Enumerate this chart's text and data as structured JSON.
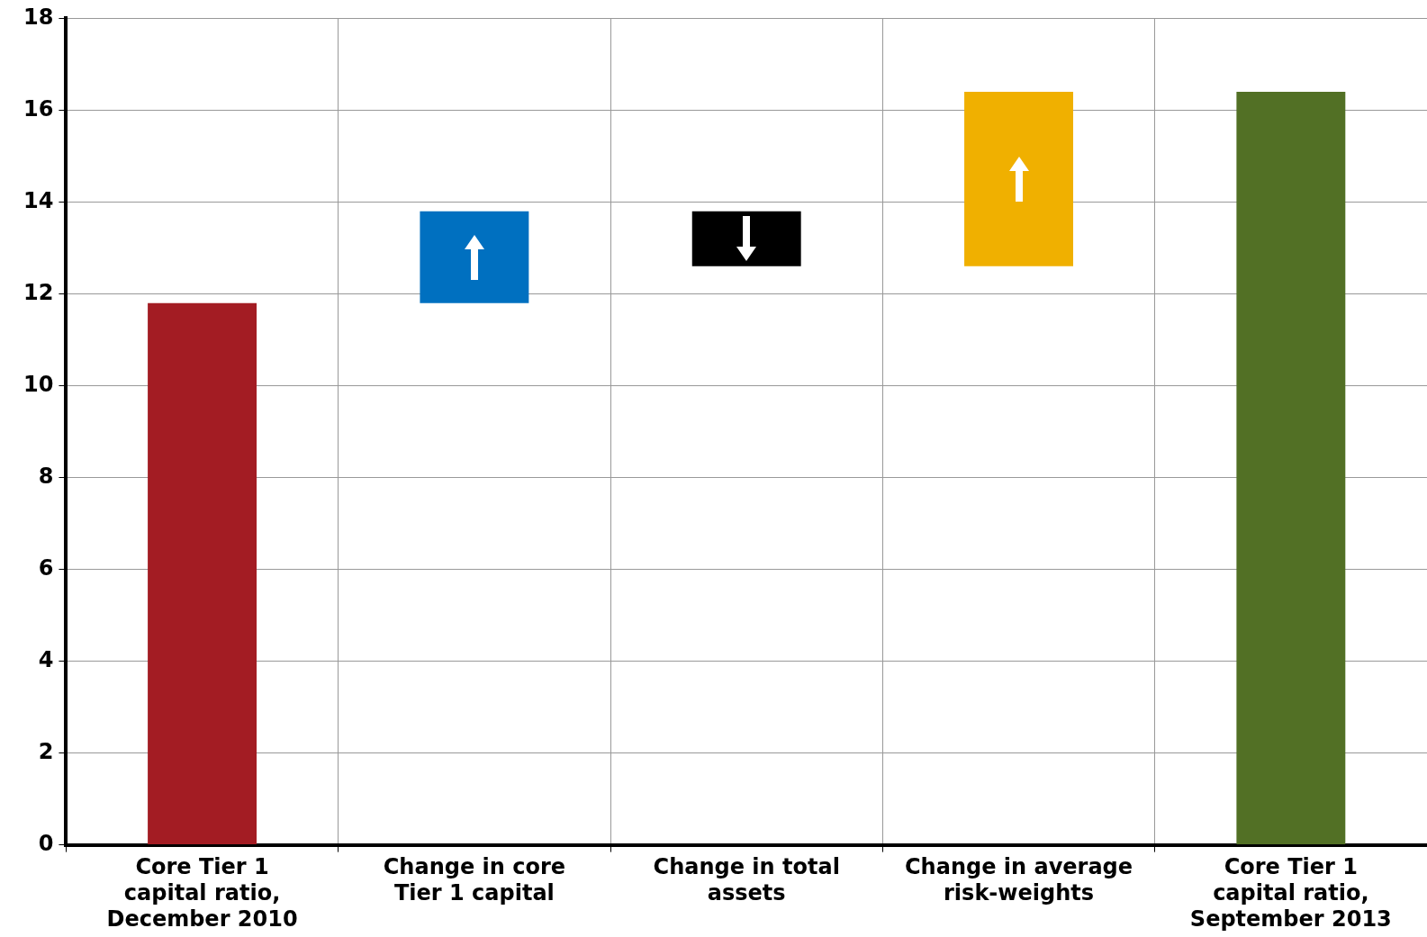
{
  "chart_data": {
    "type": "bar",
    "categories": [
      "Core Tier 1 capital ratio, December 2010",
      "Change in core Tier 1 capital",
      "Change in total assets",
      "Change in average risk-weights",
      "Core Tier 1 capital ratio, September 2013"
    ],
    "values": [
      11.8,
      2.0,
      -1.2,
      3.8,
      16.4
    ],
    "base": [
      0,
      11.8,
      13.8,
      12.6,
      0
    ],
    "colors": [
      "#a31c23",
      "#0070c0",
      "#000000",
      "#f0b000",
      "#527025"
    ],
    "ylim": [
      0,
      18
    ],
    "yticks": [
      0,
      2,
      4,
      6,
      8,
      10,
      12,
      14,
      16,
      18
    ],
    "grid": true,
    "legend": false
  }
}
